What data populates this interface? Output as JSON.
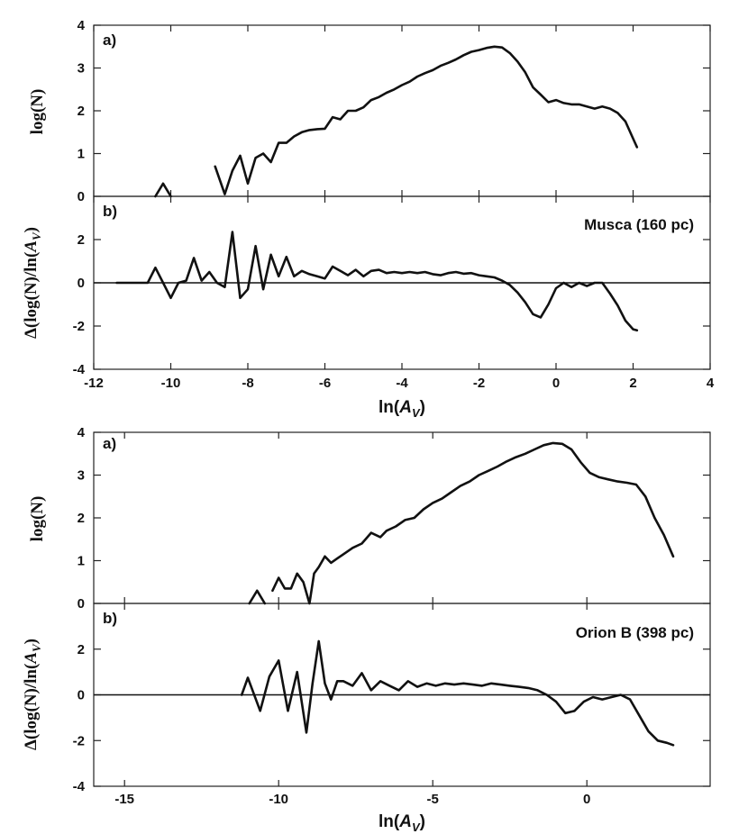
{
  "chart_data": [
    {
      "type": "line",
      "region": "Musca (160 pc)",
      "xlabel": "ln(A_V)",
      "xlabel_parts": {
        "pre": "ln(",
        "var": "A",
        "sub": "V",
        "post": ")"
      },
      "xlim": [
        -12,
        4
      ],
      "xticks": [
        -12,
        -10,
        -8,
        -6,
        -4,
        -2,
        0,
        2,
        4
      ],
      "xtick_labels": [
        "-12",
        "-10",
        "-8",
        "-6",
        "-4",
        "-2",
        "0",
        "2",
        "4"
      ],
      "panels": [
        {
          "label": "a)",
          "ylabel": "log(N)",
          "ylim": [
            0,
            4
          ],
          "yticks": [
            0,
            1,
            2,
            3,
            4
          ],
          "ytick_labels": [
            "0",
            "1",
            "2",
            "3",
            "4"
          ],
          "series": [
            {
              "name": "segment-1",
              "x": [
                -10.4,
                -10.2,
                -10.0
              ],
              "y": [
                0.0,
                0.3,
                0.0
              ]
            },
            {
              "name": "segment-2",
              "x": [
                -8.85,
                -8.6,
                -8.4,
                -8.2,
                -8.0,
                -7.8,
                -7.6,
                -7.4,
                -7.2,
                -7.0,
                -6.8,
                -6.6,
                -6.4,
                -6.2,
                -6.0,
                -5.8,
                -5.6,
                -5.4,
                -5.2,
                -5.0,
                -4.8,
                -4.6,
                -4.4,
                -4.2,
                -4.0,
                -3.8,
                -3.6,
                -3.4,
                -3.2,
                -3.0,
                -2.8,
                -2.6,
                -2.4,
                -2.2,
                -2.0,
                -1.8,
                -1.6,
                -1.4,
                -1.2,
                -1.0,
                -0.8,
                -0.6,
                -0.4,
                -0.2,
                0.0,
                0.2,
                0.4,
                0.6,
                0.8,
                1.0,
                1.2,
                1.4,
                1.6,
                1.8,
                2.0,
                2.1
              ],
              "y": [
                0.7,
                0.05,
                0.6,
                0.95,
                0.3,
                0.9,
                1.0,
                0.8,
                1.25,
                1.25,
                1.4,
                1.5,
                1.55,
                1.57,
                1.58,
                1.85,
                1.8,
                2.0,
                2.0,
                2.08,
                2.25,
                2.32,
                2.42,
                2.5,
                2.6,
                2.68,
                2.8,
                2.88,
                2.95,
                3.05,
                3.12,
                3.2,
                3.3,
                3.38,
                3.42,
                3.47,
                3.5,
                3.48,
                3.35,
                3.15,
                2.9,
                2.55,
                2.38,
                2.2,
                2.25,
                2.18,
                2.15,
                2.15,
                2.1,
                2.05,
                2.1,
                2.05,
                1.95,
                1.75,
                1.35,
                1.15
              ]
            }
          ]
        },
        {
          "label": "b)",
          "ylabel": "Δ(log(N)/ln(A_V)",
          "ylabel_parts": {
            "pre": "Δ(log(N)/ln(",
            "var": "A",
            "sub": "V",
            "post": ")"
          },
          "ylim": [
            -4,
            4
          ],
          "yticks": [
            -4,
            -2,
            0,
            2
          ],
          "ytick_labels": [
            "-4",
            "-2",
            "0",
            "2"
          ],
          "zero_line": true,
          "series": [
            {
              "name": "derivative",
              "x": [
                -11.4,
                -10.6,
                -10.4,
                -10.2,
                -10.0,
                -9.8,
                -9.6,
                -9.4,
                -9.2,
                -9.0,
                -8.8,
                -8.6,
                -8.4,
                -8.2,
                -8.0,
                -7.8,
                -7.6,
                -7.4,
                -7.2,
                -7.0,
                -6.8,
                -6.6,
                -6.4,
                -6.2,
                -6.0,
                -5.8,
                -5.6,
                -5.4,
                -5.2,
                -5.0,
                -4.8,
                -4.6,
                -4.4,
                -4.2,
                -4.0,
                -3.8,
                -3.6,
                -3.4,
                -3.2,
                -3.0,
                -2.8,
                -2.6,
                -2.4,
                -2.2,
                -2.0,
                -1.8,
                -1.6,
                -1.4,
                -1.2,
                -1.0,
                -0.8,
                -0.6,
                -0.4,
                -0.2,
                0.0,
                0.2,
                0.4,
                0.6,
                0.8,
                1.0,
                1.2,
                1.4,
                1.6,
                1.8,
                2.0,
                2.1
              ],
              "y": [
                0.0,
                0.0,
                0.7,
                0.0,
                -0.7,
                0.0,
                0.1,
                1.15,
                0.1,
                0.5,
                0.0,
                -0.2,
                2.35,
                -0.7,
                -0.3,
                1.7,
                -0.3,
                1.3,
                0.3,
                1.2,
                0.3,
                0.55,
                0.4,
                0.3,
                0.2,
                0.75,
                0.55,
                0.35,
                0.6,
                0.3,
                0.55,
                0.6,
                0.45,
                0.5,
                0.45,
                0.5,
                0.45,
                0.5,
                0.4,
                0.35,
                0.45,
                0.5,
                0.42,
                0.45,
                0.35,
                0.3,
                0.25,
                0.1,
                -0.1,
                -0.45,
                -0.9,
                -1.45,
                -1.6,
                -1.0,
                -0.25,
                0.0,
                -0.2,
                0.0,
                -0.15,
                0.0,
                0.0,
                -0.5,
                -1.05,
                -1.75,
                -2.15,
                -2.2
              ]
            }
          ]
        }
      ]
    },
    {
      "type": "line",
      "region": "Orion B (398 pc)",
      "xlabel": "ln(A_V)",
      "xlabel_parts": {
        "pre": "ln(",
        "var": "A",
        "sub": "V",
        "post": ")"
      },
      "xlim": [
        -16,
        4
      ],
      "xticks": [
        -15,
        -10,
        -5,
        0
      ],
      "xtick_labels": [
        "-15",
        "-10",
        "-5",
        "0"
      ],
      "panels": [
        {
          "label": "a)",
          "ylabel": "log(N)",
          "ylim": [
            0,
            4
          ],
          "yticks": [
            0,
            1,
            2,
            3,
            4
          ],
          "ytick_labels": [
            "0",
            "1",
            "2",
            "3",
            "4"
          ],
          "series": [
            {
              "name": "segment-1",
              "x": [
                -10.95,
                -10.7,
                -10.45
              ],
              "y": [
                0.0,
                0.3,
                0.0
              ]
            },
            {
              "name": "segment-2",
              "x": [
                -10.2,
                -10.0,
                -9.8,
                -9.6,
                -9.4,
                -9.2,
                -9.0,
                -8.85,
                -8.7,
                -8.5,
                -8.3,
                -8.1,
                -7.9,
                -7.6,
                -7.3,
                -7.0,
                -6.7,
                -6.5,
                -6.2,
                -5.9,
                -5.6,
                -5.3,
                -5.0,
                -4.7,
                -4.4,
                -4.1,
                -3.8,
                -3.5,
                -3.2,
                -2.9,
                -2.6,
                -2.3,
                -2.0,
                -1.7,
                -1.4,
                -1.1,
                -0.8,
                -0.5,
                -0.2,
                0.1,
                0.4,
                0.7,
                1.0,
                1.3,
                1.6,
                1.9,
                2.2,
                2.5,
                2.8
              ],
              "y": [
                0.3,
                0.6,
                0.35,
                0.35,
                0.7,
                0.5,
                0.0,
                0.7,
                0.85,
                1.1,
                0.95,
                1.05,
                1.15,
                1.3,
                1.4,
                1.65,
                1.55,
                1.7,
                1.8,
                1.95,
                2.0,
                2.2,
                2.35,
                2.45,
                2.6,
                2.75,
                2.85,
                3.0,
                3.1,
                3.2,
                3.32,
                3.42,
                3.5,
                3.6,
                3.7,
                3.75,
                3.73,
                3.6,
                3.3,
                3.05,
                2.95,
                2.9,
                2.85,
                2.82,
                2.78,
                2.5,
                2.0,
                1.6,
                1.1
              ]
            }
          ]
        },
        {
          "label": "b)",
          "ylabel": "Δ(log(N)/ln(A_V)",
          "ylabel_parts": {
            "pre": "Δ(log(N)/ln(",
            "var": "A",
            "sub": "V",
            "post": ")"
          },
          "ylim": [
            -4,
            4
          ],
          "yticks": [
            -4,
            -2,
            0,
            2
          ],
          "ytick_labels": [
            "-4",
            "-2",
            "0",
            "2"
          ],
          "zero_line": true,
          "series": [
            {
              "name": "derivative",
              "x": [
                -11.2,
                -11.0,
                -10.6,
                -10.3,
                -10.0,
                -9.7,
                -9.4,
                -9.1,
                -8.9,
                -8.7,
                -8.5,
                -8.3,
                -8.1,
                -7.9,
                -7.6,
                -7.3,
                -7.0,
                -6.7,
                -6.4,
                -6.1,
                -5.8,
                -5.5,
                -5.2,
                -4.9,
                -4.6,
                -4.3,
                -4.0,
                -3.7,
                -3.4,
                -3.1,
                -2.8,
                -2.5,
                -2.2,
                -1.9,
                -1.6,
                -1.3,
                -1.0,
                -0.7,
                -0.4,
                -0.1,
                0.2,
                0.5,
                0.8,
                1.1,
                1.4,
                1.7,
                2.0,
                2.3,
                2.6,
                2.8
              ],
              "y": [
                0.0,
                0.75,
                -0.7,
                0.8,
                1.5,
                -0.7,
                1.0,
                -1.65,
                0.5,
                2.35,
                0.5,
                -0.2,
                0.6,
                0.6,
                0.4,
                0.95,
                0.2,
                0.6,
                0.4,
                0.2,
                0.6,
                0.35,
                0.5,
                0.4,
                0.5,
                0.45,
                0.5,
                0.45,
                0.4,
                0.5,
                0.45,
                0.4,
                0.35,
                0.3,
                0.2,
                0.0,
                -0.3,
                -0.8,
                -0.7,
                -0.3,
                -0.1,
                -0.2,
                -0.1,
                0.0,
                -0.2,
                -0.9,
                -1.6,
                -2.0,
                -2.1,
                -2.2
              ]
            }
          ]
        }
      ]
    }
  ]
}
